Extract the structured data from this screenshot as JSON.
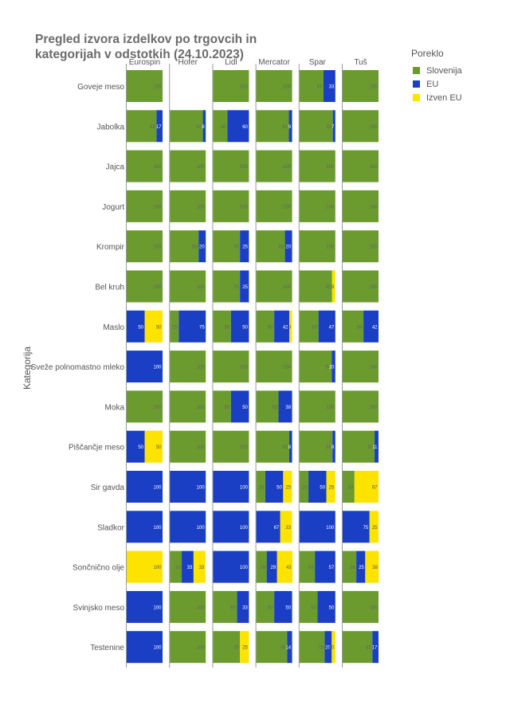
{
  "chart_data": {
    "type": "bar",
    "orientation": "horizontal-stacked-facets",
    "title_lines": [
      "Pregled izvora izdelkov po trgovcih in",
      " kategorijah v odstotkih (24.10.2023)"
    ],
    "ylabel": "Kategorija",
    "xlim": [
      0,
      100
    ],
    "legend_title": "Poreklo",
    "legend_placement": "top-right",
    "series": [
      {
        "name": "Slovenija",
        "color": "#6b9a2e"
      },
      {
        "name": "EU",
        "color": "#1a3fc4"
      },
      {
        "name": "Izven EU",
        "color": "#fce300"
      }
    ],
    "stores": [
      "Eurospin",
      "Hofer",
      "Lidl",
      "Mercator",
      "Spar",
      "Tuš"
    ],
    "categories": [
      "Goveje meso",
      "Jabolka",
      "Jajca",
      "Jogurt",
      "Krompir",
      "Bel kruh",
      "Maslo",
      "Sveže polnomastno mleko",
      "Moka",
      "Piščančje meso",
      "Sir gavda",
      "Sladkor",
      "Sončnično olje",
      "Svinjsko meso",
      "Testenine"
    ],
    "values": {
      "Eurospin": [
        [
          100,
          0,
          0
        ],
        [
          83,
          17,
          0
        ],
        [
          100,
          0,
          0
        ],
        [
          100,
          0,
          0
        ],
        [
          100,
          0,
          0
        ],
        [
          100,
          0,
          0
        ],
        [
          0,
          50,
          50
        ],
        [
          0,
          100,
          0
        ],
        [
          100,
          0,
          0
        ],
        [
          0,
          50,
          50
        ],
        [
          0,
          100,
          0
        ],
        [
          0,
          100,
          0
        ],
        [
          0,
          0,
          100
        ],
        [
          0,
          100,
          0
        ],
        [
          0,
          100,
          0
        ]
      ],
      "Hofer": [
        null,
        [
          92,
          8,
          0
        ],
        [
          100,
          0,
          0
        ],
        [
          100,
          0,
          0
        ],
        [
          80,
          20,
          0
        ],
        [
          100,
          0,
          0
        ],
        [
          25,
          75,
          0
        ],
        [
          100,
          0,
          0
        ],
        [
          100,
          0,
          0
        ],
        [
          100,
          0,
          0
        ],
        [
          0,
          100,
          0
        ],
        [
          0,
          100,
          0
        ],
        [
          33,
          33,
          33
        ],
        [
          100,
          0,
          0
        ],
        [
          100,
          0,
          0
        ]
      ],
      "Lidl": [
        [
          100,
          0,
          0
        ],
        [
          40,
          60,
          0
        ],
        [
          100,
          0,
          0
        ],
        [
          100,
          0,
          0
        ],
        [
          75,
          25,
          0
        ],
        [
          75,
          25,
          0
        ],
        [
          50,
          50,
          0
        ],
        [
          100,
          0,
          0
        ],
        [
          50,
          50,
          0
        ],
        [
          100,
          0,
          0
        ],
        [
          0,
          100,
          0
        ],
        [
          0,
          100,
          0
        ],
        [
          0,
          100,
          0
        ],
        [
          67,
          33,
          0
        ],
        [
          75,
          0,
          25
        ]
      ],
      "Mercator": [
        [
          100,
          0,
          0
        ],
        [
          91,
          9,
          0
        ],
        [
          100,
          0,
          0
        ],
        [
          100,
          0,
          0
        ],
        [
          80,
          20,
          0
        ],
        [
          100,
          0,
          0
        ],
        [
          50,
          42,
          8
        ],
        [
          100,
          0,
          0
        ],
        [
          62,
          38,
          0
        ],
        [
          92,
          8,
          0
        ],
        [
          25,
          50,
          25
        ],
        [
          0,
          67,
          33
        ],
        [
          29,
          29,
          43
        ],
        [
          50,
          50,
          0
        ],
        [
          86,
          14,
          0
        ]
      ],
      "Spar": [
        [
          67,
          33,
          0
        ],
        [
          93,
          7,
          0
        ],
        [
          100,
          0,
          0
        ],
        [
          100,
          0,
          0
        ],
        [
          100,
          0,
          0
        ],
        [
          91,
          0,
          9
        ],
        [
          53,
          47,
          0
        ],
        [
          90,
          10,
          0
        ],
        [
          100,
          0,
          0
        ],
        [
          92,
          8,
          0
        ],
        [
          25,
          50,
          25
        ],
        [
          0,
          100,
          0
        ],
        [
          43,
          57,
          0
        ],
        [
          50,
          50,
          0
        ],
        [
          70,
          20,
          10
        ]
      ],
      "Tuš": [
        [
          100,
          0,
          0
        ],
        [
          100,
          0,
          0
        ],
        [
          100,
          0,
          0
        ],
        [
          100,
          0,
          0
        ],
        [
          100,
          0,
          0
        ],
        [
          100,
          0,
          0
        ],
        [
          58,
          42,
          0
        ],
        [
          100,
          0,
          0
        ],
        [
          100,
          0,
          0
        ],
        [
          89,
          11,
          0
        ],
        [
          33,
          0,
          67
        ],
        [
          0,
          75,
          25
        ],
        [
          38,
          25,
          38
        ],
        [
          100,
          0,
          0
        ],
        [
          83,
          17,
          0
        ]
      ]
    }
  }
}
